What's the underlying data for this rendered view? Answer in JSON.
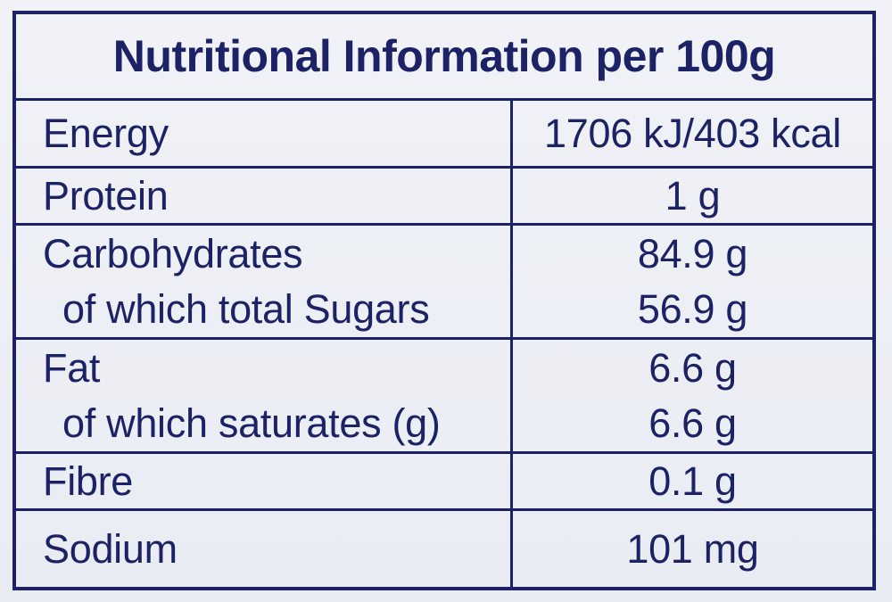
{
  "title": "Nutritional Information per 100g",
  "rows": [
    {
      "name": "Energy",
      "value": "1706 kJ/403 kcal"
    },
    {
      "name": "Protein",
      "value": "1 g"
    },
    {
      "name": "Carbohydrates",
      "value": "84.9 g",
      "sub_name": "of which total Sugars",
      "sub_value": "56.9 g"
    },
    {
      "name": "Fat",
      "value": "6.6 g",
      "sub_name": "of which saturates (g)",
      "sub_value": "6.6 g"
    },
    {
      "name": "Fibre",
      "value": "0.1 g"
    },
    {
      "name": "Sodium",
      "value": "101 mg"
    }
  ],
  "colors": {
    "ink": "#1c2265",
    "background": "#eceff5"
  }
}
